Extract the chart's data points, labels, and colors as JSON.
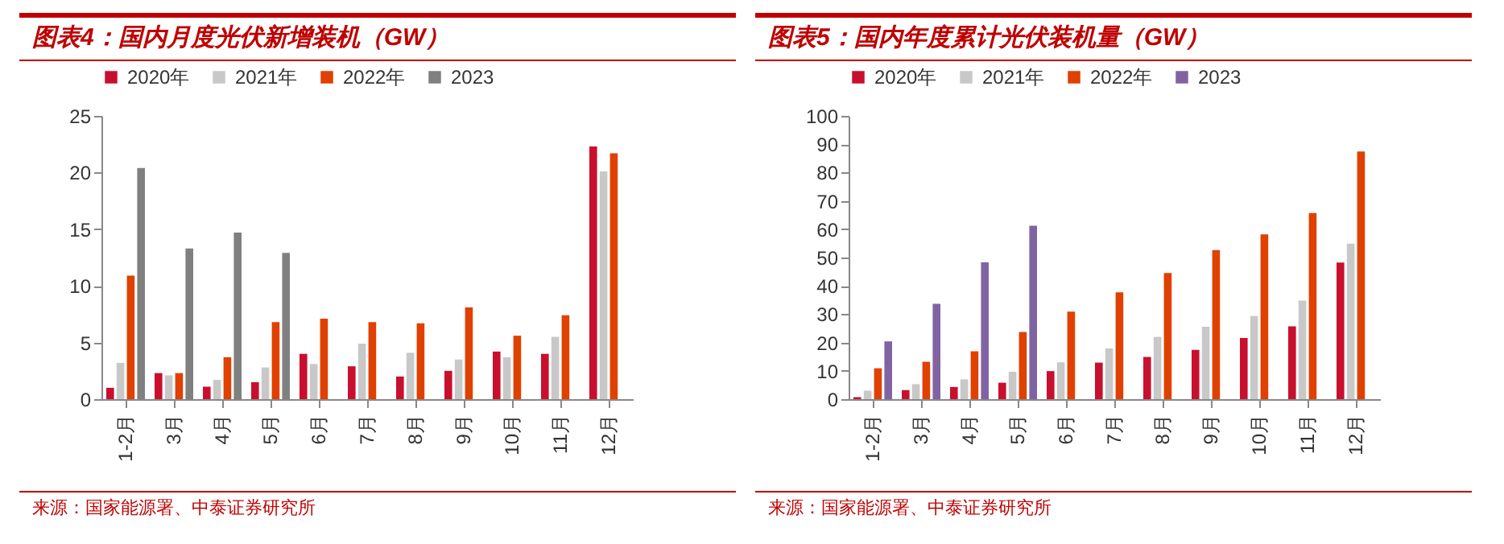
{
  "chart_data": [
    {
      "type": "bar",
      "title": "图表4：国内月度光伏新增装机（GW）",
      "categories": [
        "1-2月",
        "3月",
        "4月",
        "5月",
        "6月",
        "7月",
        "8月",
        "9月",
        "10月",
        "11月",
        "12月"
      ],
      "series": [
        {
          "name": "2020年",
          "color": "#c8102e",
          "values": [
            1.0,
            2.3,
            1.1,
            1.5,
            4.0,
            2.9,
            2.0,
            2.5,
            4.2,
            4.0,
            22.3
          ]
        },
        {
          "name": "2021年",
          "color": "#c8c8c8",
          "values": [
            3.2,
            2.1,
            1.7,
            2.8,
            3.1,
            4.9,
            4.1,
            3.5,
            3.7,
            5.5,
            20.1
          ]
        },
        {
          "name": "2022年",
          "color": "#e04000",
          "values": [
            10.9,
            2.3,
            3.7,
            6.8,
            7.1,
            6.8,
            6.7,
            8.1,
            5.6,
            7.4,
            21.7
          ]
        },
        {
          "name": "2023",
          "color": "#808080",
          "values": [
            20.4,
            13.3,
            14.7,
            12.9,
            null,
            null,
            null,
            null,
            null,
            null,
            null
          ]
        }
      ],
      "ylim": [
        0,
        25
      ],
      "yticks": [
        0,
        5,
        10,
        15,
        20,
        25
      ],
      "grid": false,
      "legend": "top",
      "annotations": [
        "来源：国家能源署、中泰证券研究所"
      ]
    },
    {
      "type": "bar",
      "title": "图表5：国内年度累计光伏装机量（GW）",
      "categories": [
        "1-2月",
        "3月",
        "4月",
        "5月",
        "6月",
        "7月",
        "8月",
        "9月",
        "10月",
        "11月",
        "12月"
      ],
      "series": [
        {
          "name": "2020年",
          "color": "#c8102e",
          "values": [
            0.7,
            3.2,
            4.3,
            5.8,
            9.9,
            12.9,
            14.9,
            17.4,
            21.6,
            25.7,
            48.2
          ]
        },
        {
          "name": "2021年",
          "color": "#c8c8c8",
          "values": [
            3.0,
            5.3,
            7.0,
            9.7,
            13.0,
            17.9,
            22.0,
            25.6,
            29.3,
            34.8,
            54.9
          ]
        },
        {
          "name": "2022年",
          "color": "#e04000",
          "values": [
            10.9,
            13.2,
            16.9,
            23.7,
            30.9,
            37.7,
            44.5,
            52.6,
            58.2,
            65.7,
            87.4
          ]
        },
        {
          "name": "2023",
          "color": "#8064a2",
          "values": [
            20.4,
            33.7,
            48.3,
            61.2,
            null,
            null,
            null,
            null,
            null,
            null,
            null
          ]
        }
      ],
      "ylim": [
        0,
        100
      ],
      "yticks": [
        0,
        10,
        20,
        30,
        40,
        50,
        60,
        70,
        80,
        90,
        100
      ],
      "grid": false,
      "legend": "top",
      "annotations": [
        "来源：国家能源署、中泰证券研究所"
      ]
    }
  ]
}
